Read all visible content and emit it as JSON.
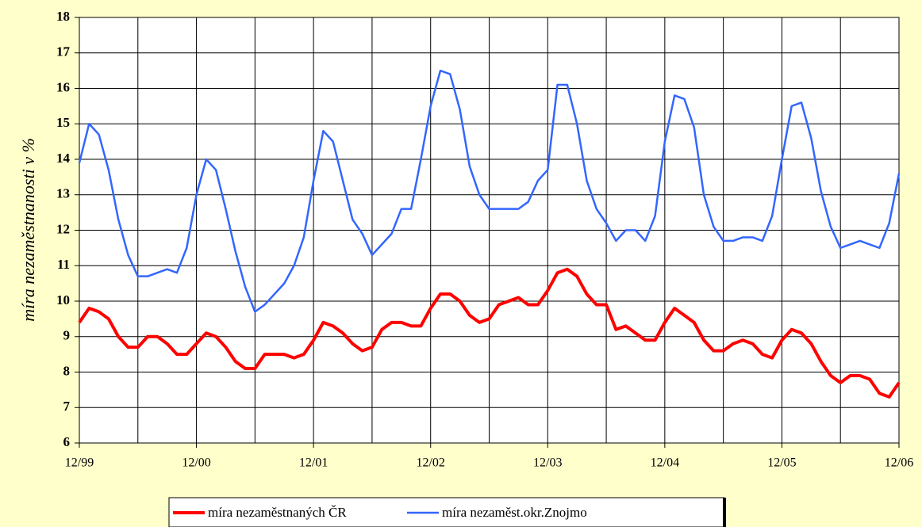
{
  "chart_data": {
    "type": "line",
    "y_label": "míra nezaměstnanosti v %",
    "categories": [
      "12/99",
      null,
      null,
      null,
      null,
      null,
      null,
      null,
      null,
      null,
      null,
      null,
      "12/00",
      null,
      null,
      null,
      null,
      null,
      null,
      null,
      null,
      null,
      null,
      null,
      "12/01",
      null,
      null,
      null,
      null,
      null,
      null,
      null,
      null,
      null,
      null,
      null,
      "12/02",
      null,
      null,
      null,
      null,
      null,
      null,
      null,
      null,
      null,
      null,
      null,
      "12/03",
      null,
      null,
      null,
      null,
      null,
      null,
      null,
      null,
      null,
      null,
      null,
      "12/04",
      null,
      null,
      null,
      null,
      null,
      null,
      null,
      null,
      null,
      null,
      null,
      "12/05",
      null,
      null,
      null,
      null,
      null,
      null,
      null,
      null,
      null,
      null,
      null,
      "12/06"
    ],
    "series": [
      {
        "name": "míra nezaměstnaných ČR",
        "color": "#ff0000",
        "values": [
          9.4,
          9.8,
          9.7,
          9.5,
          9.0,
          8.7,
          8.7,
          9.0,
          9.0,
          8.8,
          8.5,
          8.5,
          8.8,
          9.1,
          9.0,
          8.7,
          8.3,
          8.1,
          8.1,
          8.5,
          8.5,
          8.5,
          8.4,
          8.5,
          8.9,
          9.4,
          9.3,
          9.1,
          8.8,
          8.6,
          8.7,
          9.2,
          9.4,
          9.4,
          9.3,
          9.3,
          9.8,
          10.2,
          10.2,
          10.0,
          9.6,
          9.4,
          9.5,
          9.9,
          10.0,
          10.1,
          9.9,
          9.9,
          10.3,
          10.8,
          10.9,
          10.7,
          10.2,
          9.9,
          9.9,
          9.2,
          9.3,
          9.1,
          8.9,
          8.9,
          9.4,
          9.8,
          9.6,
          9.4,
          8.9,
          8.6,
          8.6,
          8.8,
          8.9,
          8.8,
          8.5,
          8.4,
          8.9,
          9.2,
          9.1,
          8.8,
          8.3,
          7.9,
          7.7,
          7.9,
          7.9,
          7.8,
          7.4,
          7.3,
          7.7
        ]
      },
      {
        "name": "míra nezaměst.okr.Znojmo",
        "color": "#3366ff",
        "values": [
          13.9,
          15.0,
          14.7,
          13.7,
          12.3,
          11.3,
          10.7,
          10.7,
          10.8,
          10.9,
          10.8,
          11.5,
          13.0,
          14.0,
          13.7,
          12.6,
          11.4,
          10.4,
          9.7,
          9.9,
          10.2,
          10.5,
          11.0,
          11.8,
          13.4,
          14.8,
          14.5,
          13.4,
          12.3,
          11.9,
          11.3,
          11.6,
          11.9,
          12.6,
          12.6,
          14.0,
          15.5,
          16.5,
          16.4,
          15.4,
          13.8,
          13.0,
          12.6,
          12.6,
          12.6,
          12.6,
          12.8,
          13.4,
          13.7,
          16.1,
          16.1,
          15.0,
          13.4,
          12.6,
          12.2,
          11.7,
          12.0,
          12.0,
          11.7,
          12.4,
          14.5,
          15.8,
          15.7,
          14.9,
          13.0,
          12.1,
          11.7,
          11.7,
          11.8,
          11.8,
          11.7,
          12.4,
          14.0,
          15.5,
          15.6,
          14.6,
          13.1,
          12.1,
          11.5,
          11.6,
          11.7,
          11.6,
          11.5,
          12.2,
          13.6
        ]
      }
    ],
    "ylim": [
      6,
      18
    ],
    "yticks": [
      6,
      7,
      8,
      9,
      10,
      11,
      12,
      13,
      14,
      15,
      16,
      17,
      18
    ],
    "grid": true,
    "legend": "bottom"
  }
}
